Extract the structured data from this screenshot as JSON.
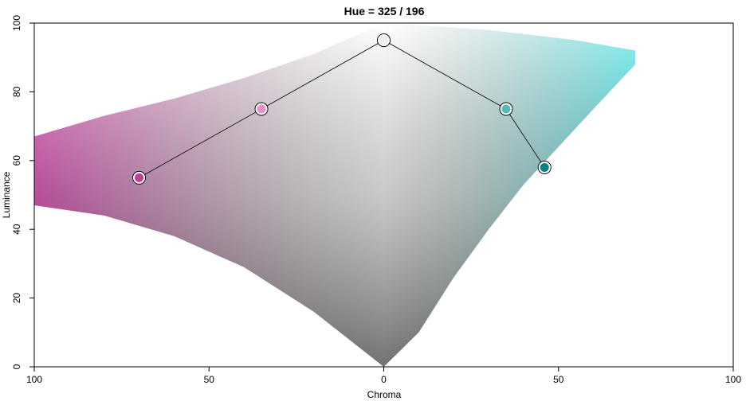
{
  "chart_data": {
    "type": "scatter",
    "title": "Hue = 325 / 196",
    "xlabel": "Chroma",
    "ylabel": "Luminance",
    "xlim": [
      -100,
      100
    ],
    "ylim": [
      0,
      100
    ],
    "x_ticks": [
      -100,
      -50,
      0,
      50,
      100
    ],
    "x_tick_labels": [
      "100",
      "50",
      "0",
      "50",
      "100"
    ],
    "y_ticks": [
      0,
      20,
      40,
      60,
      80,
      100
    ],
    "y_tick_labels": [
      "0",
      "20",
      "40",
      "60",
      "80",
      "100"
    ],
    "grid": false,
    "background_gamut": {
      "left_hue": 325,
      "right_hue": 196,
      "left_boundary": [
        [
          0,
          0
        ],
        [
          -20,
          16
        ],
        [
          -40,
          29
        ],
        [
          -60,
          38
        ],
        [
          -80,
          44
        ],
        [
          -100,
          47
        ],
        [
          -100,
          67
        ],
        [
          -80,
          73
        ],
        [
          -60,
          78
        ],
        [
          -40,
          84
        ],
        [
          -20,
          91
        ],
        [
          0,
          100
        ]
      ],
      "right_boundary": [
        [
          0,
          0
        ],
        [
          10,
          10
        ],
        [
          20,
          26
        ],
        [
          30,
          40
        ],
        [
          40,
          53
        ],
        [
          50,
          64
        ],
        [
          60,
          75
        ],
        [
          72,
          88
        ],
        [
          72,
          92
        ],
        [
          55,
          95
        ],
        [
          30,
          98
        ],
        [
          0,
          100
        ]
      ]
    },
    "series": [
      {
        "points": [
          {
            "x": -70,
            "y": 55,
            "color": "#c23c95"
          },
          {
            "x": -35,
            "y": 75,
            "color": "#e692c6"
          },
          {
            "x": 0,
            "y": 95,
            "color": "#efefef"
          },
          {
            "x": 35,
            "y": 75,
            "color": "#58b9b9"
          },
          {
            "x": 46,
            "y": 58,
            "color": "#0a8080"
          }
        ]
      }
    ]
  }
}
